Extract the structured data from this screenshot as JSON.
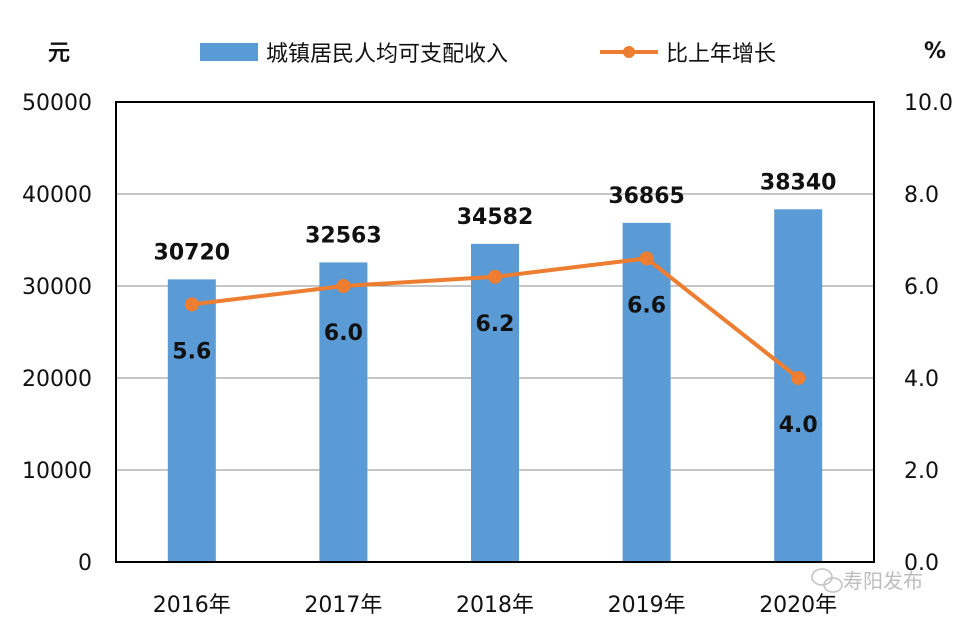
{
  "chart_data": {
    "type": "bar",
    "categories": [
      "2016年",
      "2017年",
      "2018年",
      "2019年",
      "2020年"
    ],
    "series": [
      {
        "name": "城镇居民人均可支配收入",
        "type": "bar",
        "axis": "left",
        "values": [
          30720,
          32563,
          34582,
          36865,
          38340
        ],
        "labels": [
          "30720",
          "32563",
          "34582",
          "36865",
          "38340"
        ],
        "color": "#5b9bd5"
      },
      {
        "name": "比上年增长",
        "type": "line",
        "axis": "right",
        "values": [
          5.6,
          6.0,
          6.2,
          6.6,
          4.0
        ],
        "labels": [
          "5.6",
          "6.0",
          "6.2",
          "6.6",
          "4.0"
        ],
        "color": "#ed7d31"
      }
    ],
    "y_left": {
      "unit": "元",
      "ylim": [
        0,
        50000
      ],
      "ticks": [
        "0",
        "10000",
        "20000",
        "30000",
        "40000",
        "50000"
      ]
    },
    "y_right": {
      "unit": "%",
      "ylim": [
        0,
        10
      ],
      "ticks": [
        "0.0",
        "2.0",
        "4.0",
        "6.0",
        "8.0",
        "10.0"
      ]
    },
    "grid": true,
    "legend_position": "top-center"
  },
  "watermark": {
    "text": "寿阳发布",
    "icon": "wechat-icon"
  }
}
